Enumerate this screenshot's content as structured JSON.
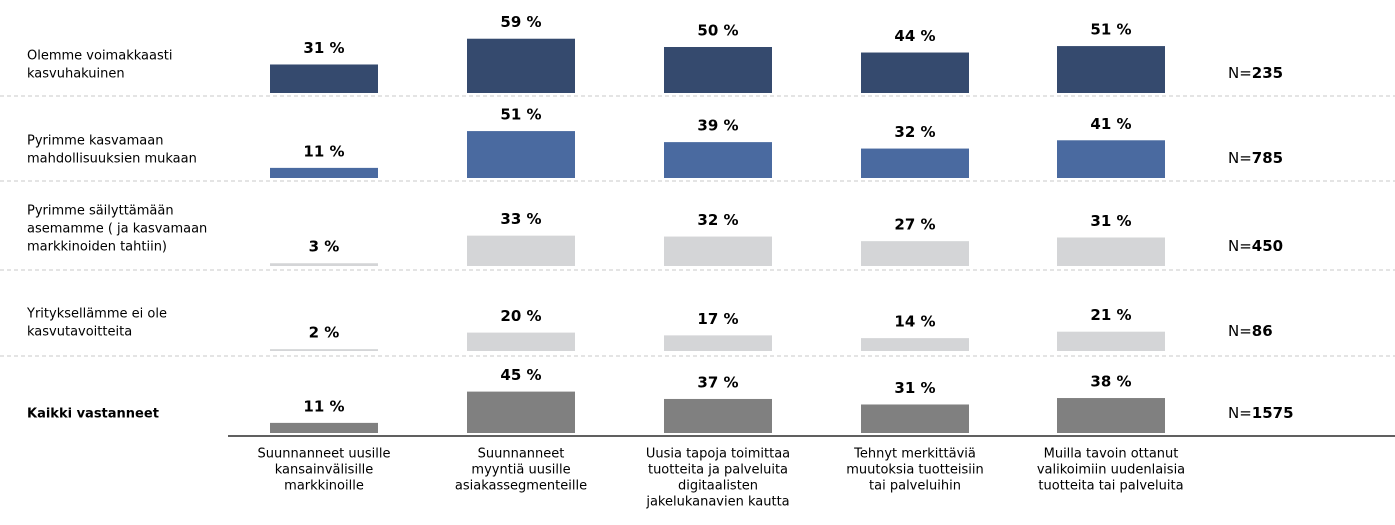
{
  "chart_data": {
    "type": "bar",
    "categories": [
      [
        "Suunnanneet uusille",
        "kansainvälisille",
        "markkinoille"
      ],
      [
        "Suunnanneet",
        "myyntiä uusille",
        "asiakassegmenteille"
      ],
      [
        "Uusia tapoja toimittaa",
        "tuotteita ja palveluita",
        "digitaalisten",
        "jakelukanavien kautta"
      ],
      [
        "Tehnyt merkittäviä",
        "muutoksia tuotteisiin",
        "tai palveluihin"
      ],
      [
        "Muilla tavoin ottanut",
        "valikoimiin uudenlaisia",
        "tuotteita tai palveluita"
      ]
    ],
    "series": [
      {
        "name": [
          "Olemme voimakkaasti",
          "kasvuhakuinen"
        ],
        "color": "#354a6e",
        "bold": false,
        "values": [
          31,
          59,
          50,
          44,
          51
        ],
        "value_labels": [
          "31 %",
          "59 %",
          "50 %",
          "44 %",
          "51 %"
        ],
        "n_prefix": "N=",
        "n": 235
      },
      {
        "name": [
          "Pyrimme kasvamaan",
          "mahdollisuuksien mukaan"
        ],
        "color": "#4a6aa0",
        "bold": false,
        "values": [
          11,
          51,
          39,
          32,
          41
        ],
        "value_labels": [
          "11 %",
          "51 %",
          "39 %",
          "32 %",
          "41 %"
        ],
        "n_prefix": "N=",
        "n": 785
      },
      {
        "name": [
          "Pyrimme säilyttämään",
          "asemamme ( ja kasvamaan",
          "markkinoiden tahtiin)"
        ],
        "color": "#d4d5d7",
        "bold": false,
        "values": [
          3,
          33,
          32,
          27,
          31
        ],
        "value_labels": [
          "3 %",
          "33 %",
          "32 %",
          "27 %",
          "31 %"
        ],
        "n_prefix": "N=",
        "n": 450
      },
      {
        "name": [
          "Yrityksellämme ei ole",
          "kasvutavoitteita"
        ],
        "color": "#d4d5d7",
        "bold": false,
        "values": [
          2,
          20,
          17,
          14,
          21
        ],
        "value_labels": [
          "2 %",
          "20 %",
          "17 %",
          "14 %",
          "21 %"
        ],
        "n_prefix": "N=",
        "n": 86
      },
      {
        "name": [
          "Kaikki vastanneet"
        ],
        "color": "#808080",
        "bold": true,
        "values": [
          11,
          45,
          37,
          31,
          38
        ],
        "value_labels": [
          "11 %",
          "45 %",
          "37 %",
          "31 %",
          "38 %"
        ],
        "n_prefix": "N=",
        "n": 1575
      }
    ]
  }
}
